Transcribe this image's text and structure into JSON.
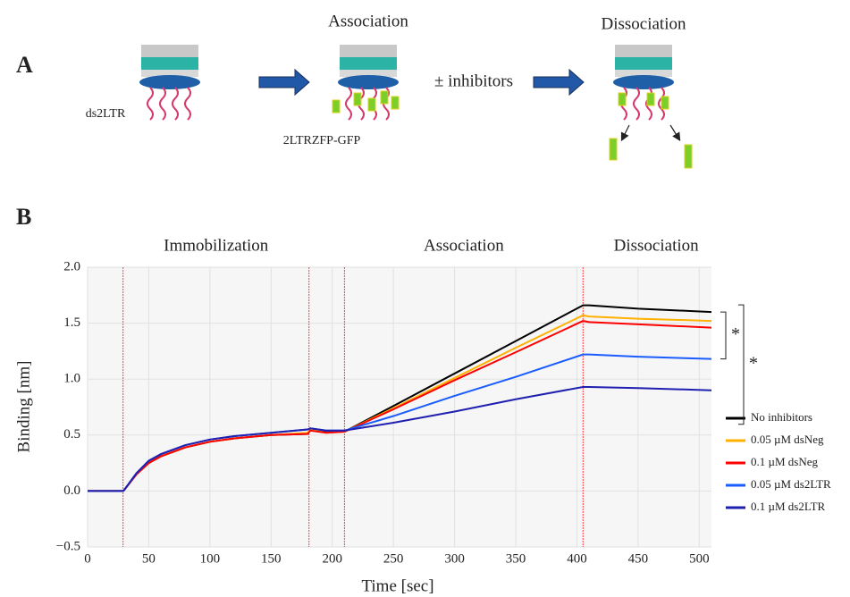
{
  "panel_a": {
    "label": "A",
    "association": "Association",
    "dissociation": "Dissociation",
    "inhibitors": "± inhibitors",
    "probe": "ds2LTR",
    "protein": "2LTRZFP-GFP"
  },
  "chart_data": {
    "type": "line",
    "panel_label": "B",
    "phases": [
      "Immobilization",
      "Association",
      "Dissociation"
    ],
    "phase_lines": [
      29,
      181,
      210,
      405
    ],
    "x_label": "Time [sec]",
    "y_label": "Binding [nm]",
    "xlim": [
      0,
      510
    ],
    "xticks": [
      0,
      50,
      100,
      150,
      200,
      250,
      300,
      350,
      400,
      450,
      500
    ],
    "ylim": [
      -0.5,
      2.0
    ],
    "yticks": [
      {
        "value": -0.5,
        "label": "−0.5"
      },
      {
        "value": 0,
        "label": "0.0"
      },
      0.5,
      {
        "value": 1,
        "label": "1.0"
      },
      1.5,
      {
        "value": 2,
        "label": "2.0"
      }
    ],
    "grid": true,
    "x": [
      0,
      29,
      30,
      40,
      50,
      60,
      80,
      100,
      120,
      150,
      180,
      182,
      195,
      210,
      250,
      300,
      350,
      405,
      410,
      450,
      510
    ],
    "series": [
      {
        "name": "No inhibitors",
        "color": "#000000",
        "values": [
          0,
          0,
          0.01,
          0.15,
          0.25,
          0.31,
          0.39,
          0.44,
          0.47,
          0.5,
          0.51,
          0.55,
          0.53,
          0.53,
          0.76,
          1.05,
          1.34,
          1.66,
          1.66,
          1.63,
          1.6
        ]
      },
      {
        "name": "0.05 µM dsNeg",
        "color": "#ffb000",
        "values": [
          0,
          0,
          0.01,
          0.15,
          0.25,
          0.31,
          0.39,
          0.44,
          0.47,
          0.5,
          0.52,
          0.55,
          0.52,
          0.53,
          0.74,
          1.01,
          1.28,
          1.57,
          1.56,
          1.54,
          1.52
        ]
      },
      {
        "name": "0.1 µM dsNeg",
        "color": "#ff0000",
        "values": [
          0,
          0,
          0.01,
          0.15,
          0.25,
          0.31,
          0.39,
          0.44,
          0.47,
          0.5,
          0.51,
          0.54,
          0.52,
          0.53,
          0.73,
          0.99,
          1.24,
          1.52,
          1.51,
          1.49,
          1.46
        ]
      },
      {
        "name": "0.05 µM ds2LTR",
        "color": "#1a5cff",
        "values": [
          0,
          0,
          0.01,
          0.16,
          0.27,
          0.33,
          0.41,
          0.46,
          0.49,
          0.52,
          0.55,
          0.56,
          0.54,
          0.54,
          0.67,
          0.85,
          1.02,
          1.22,
          1.22,
          1.2,
          1.18
        ]
      },
      {
        "name": "0.1 µM ds2LTR",
        "color": "#2020b0",
        "values": [
          0,
          0,
          0.01,
          0.16,
          0.27,
          0.33,
          0.41,
          0.46,
          0.49,
          0.52,
          0.55,
          0.56,
          0.54,
          0.54,
          0.61,
          0.71,
          0.82,
          0.93,
          0.93,
          0.92,
          0.9
        ]
      }
    ],
    "legend": "right",
    "annotations": [
      "*",
      "*"
    ]
  }
}
